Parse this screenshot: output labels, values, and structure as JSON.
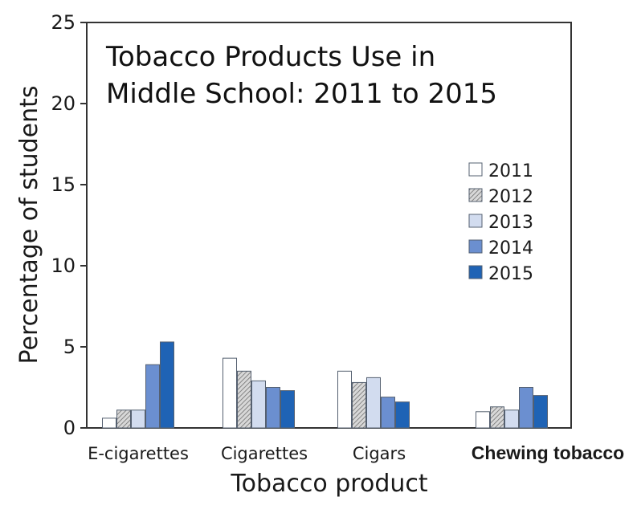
{
  "chart_data": {
    "type": "bar",
    "title_lines": [
      "Tobacco Products Use in",
      "Middle School: 2011 to 2015"
    ],
    "xlabel": "Tobacco product",
    "ylabel": "Percentage of students",
    "ylim": [
      0,
      25
    ],
    "yticks": [
      "0",
      "5",
      "10",
      "15",
      "20",
      "25"
    ],
    "categories": [
      "E-cigarettes",
      "Cigarettes",
      "Cigars",
      "Chewing tobacco"
    ],
    "series": [
      {
        "name": "2011",
        "values": [
          0.6,
          4.3,
          3.5,
          1.0
        ],
        "fill": "#ffffff",
        "pattern": "none"
      },
      {
        "name": "2012",
        "values": [
          1.1,
          3.5,
          2.8,
          1.3
        ],
        "fill": "#d0d0d0",
        "pattern": "hatch"
      },
      {
        "name": "2013",
        "values": [
          1.1,
          2.9,
          3.1,
          1.1
        ],
        "fill": "#d2dcef",
        "pattern": "none"
      },
      {
        "name": "2014",
        "values": [
          3.9,
          2.5,
          1.9,
          2.5
        ],
        "fill": "#6b8fd0",
        "pattern": "none"
      },
      {
        "name": "2015",
        "values": [
          5.3,
          2.3,
          1.6,
          2.0
        ],
        "fill": "#1f63b5",
        "pattern": "none"
      }
    ],
    "legend_position": "right"
  }
}
